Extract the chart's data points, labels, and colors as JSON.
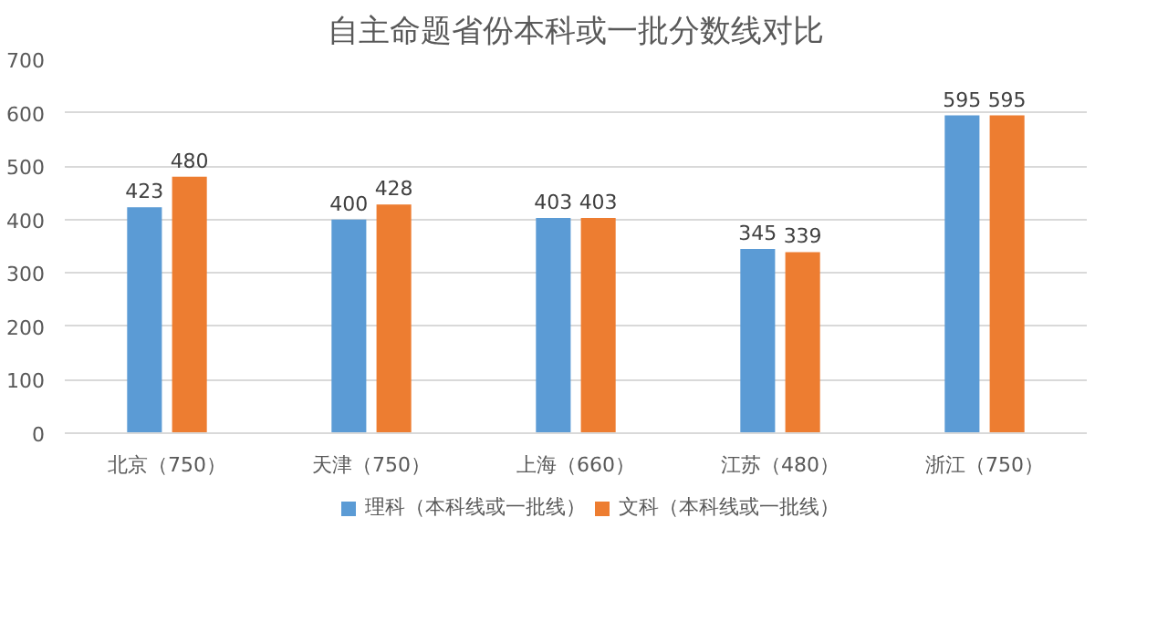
{
  "chart_data": {
    "type": "bar",
    "title": "自主命题省份本科或一批分数线对比",
    "categories": [
      "北京（750）",
      "天津（750）",
      "上海（660）",
      "江苏（480）",
      "浙江（750）"
    ],
    "series": [
      {
        "name": "理科（本科线或一批线）",
        "color": "#5b9bd5",
        "values": [
          423,
          400,
          403,
          345,
          595
        ]
      },
      {
        "name": "文科（本科线或一批线）",
        "color": "#ed7d31",
        "values": [
          480,
          428,
          403,
          339,
          595
        ]
      }
    ],
    "ylim": [
      0,
      700
    ],
    "yticks": [
      0,
      100,
      200,
      300,
      400,
      500,
      600,
      700
    ],
    "grid": "y",
    "legend": "bottom",
    "data_labels": true
  }
}
